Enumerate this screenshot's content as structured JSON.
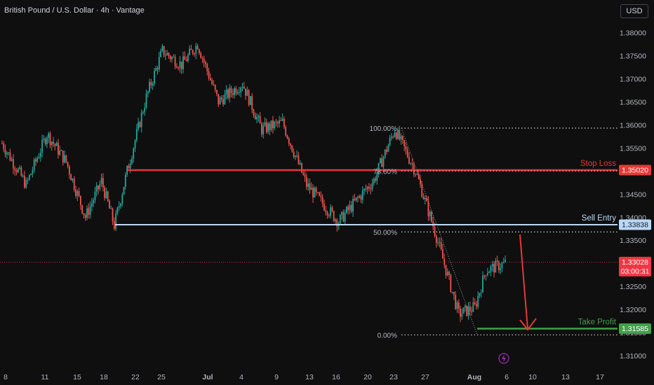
{
  "header": {
    "title": "British Pound / U.S. Dollar · 4h · Vantage",
    "currency_button": "USD"
  },
  "colors": {
    "background": "#0f0f0f",
    "up": "#26a69a",
    "down": "#ef5350",
    "stop_loss": "#e53935",
    "sell_entry": "#bbd9f7",
    "take_profit": "#43a047",
    "grid_text": "#b2b5be",
    "current_price": "#f23645"
  },
  "chart_data": {
    "type": "candlestick",
    "title": "British Pound / U.S. Dollar · 4h · Vantage",
    "y_ticks": [
      1.31,
      1.315,
      1.32,
      1.325,
      1.33,
      1.335,
      1.34,
      1.345,
      1.35,
      1.355,
      1.36,
      1.365,
      1.37,
      1.375,
      1.38
    ],
    "x_ticks": [
      "8",
      "11",
      "15",
      "18",
      "22",
      "25",
      "Jul",
      "4",
      "9",
      "13",
      "16",
      "20",
      "23",
      "27",
      "Aug",
      "6",
      "10",
      "13",
      "17"
    ],
    "ylim": [
      1.3085,
      1.3825
    ],
    "levels": {
      "stop_loss": {
        "label": "Stop Loss",
        "value": 1.3502,
        "price_label": "1.35020"
      },
      "sell_entry": {
        "label": "Sell Entry",
        "value": 1.33838,
        "price_label": "1.33838"
      },
      "take_profit": {
        "label": "Take Profit",
        "value": 1.31585,
        "price_label": "1.31585"
      }
    },
    "fibonacci": [
      {
        "label": "100.00%",
        "value": 1.3593
      },
      {
        "label": "78.60%",
        "value": 1.35
      },
      {
        "label": "50.00%",
        "value": 1.3368
      },
      {
        "label": "0.00%",
        "value": 1.3145
      }
    ],
    "current_price": {
      "value": 1.33028,
      "label": "1.33028",
      "countdown": "03:00:31"
    },
    "key_points": [
      {
        "x": 0,
        "close": 1.356
      },
      {
        "x": 15,
        "close": 1.347
      },
      {
        "x": 28,
        "close": 1.358
      },
      {
        "x": 40,
        "close": 1.352
      },
      {
        "x": 52,
        "close": 1.34
      },
      {
        "x": 62,
        "close": 1.3478
      },
      {
        "x": 70,
        "close": 1.3382
      },
      {
        "x": 78,
        "close": 1.35
      },
      {
        "x": 90,
        "close": 1.366
      },
      {
        "x": 100,
        "close": 1.376
      },
      {
        "x": 112,
        "close": 1.373
      },
      {
        "x": 122,
        "close": 1.3775
      },
      {
        "x": 135,
        "close": 1.365
      },
      {
        "x": 150,
        "close": 1.369
      },
      {
        "x": 162,
        "close": 1.359
      },
      {
        "x": 175,
        "close": 1.3605
      },
      {
        "x": 190,
        "close": 1.347
      },
      {
        "x": 200,
        "close": 1.343
      },
      {
        "x": 210,
        "close": 1.339
      },
      {
        "x": 222,
        "close": 1.344
      },
      {
        "x": 232,
        "close": 1.348
      },
      {
        "x": 245,
        "close": 1.359
      },
      {
        "x": 258,
        "close": 1.35
      },
      {
        "x": 270,
        "close": 1.337
      },
      {
        "x": 285,
        "close": 1.319
      },
      {
        "x": 295,
        "close": 1.3205
      },
      {
        "x": 302,
        "close": 1.3285
      },
      {
        "x": 314,
        "close": 1.33
      }
    ]
  }
}
